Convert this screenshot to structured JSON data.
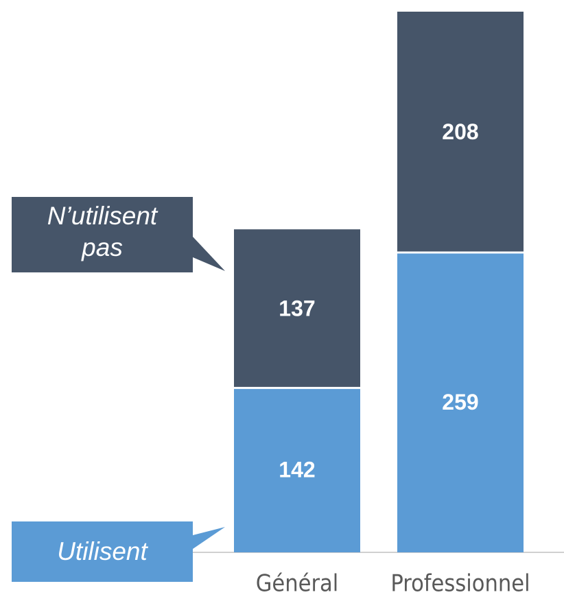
{
  "chart_data": {
    "type": "stacked_bar",
    "categories": [
      "Général",
      "Professionnel"
    ],
    "series": [
      {
        "name": "Utilisent",
        "color": "#5b9bd5",
        "values": [
          142,
          259
        ]
      },
      {
        "name": "N’utilisent pas",
        "color": "#465569",
        "values": [
          137,
          208
        ]
      }
    ]
  }
}
